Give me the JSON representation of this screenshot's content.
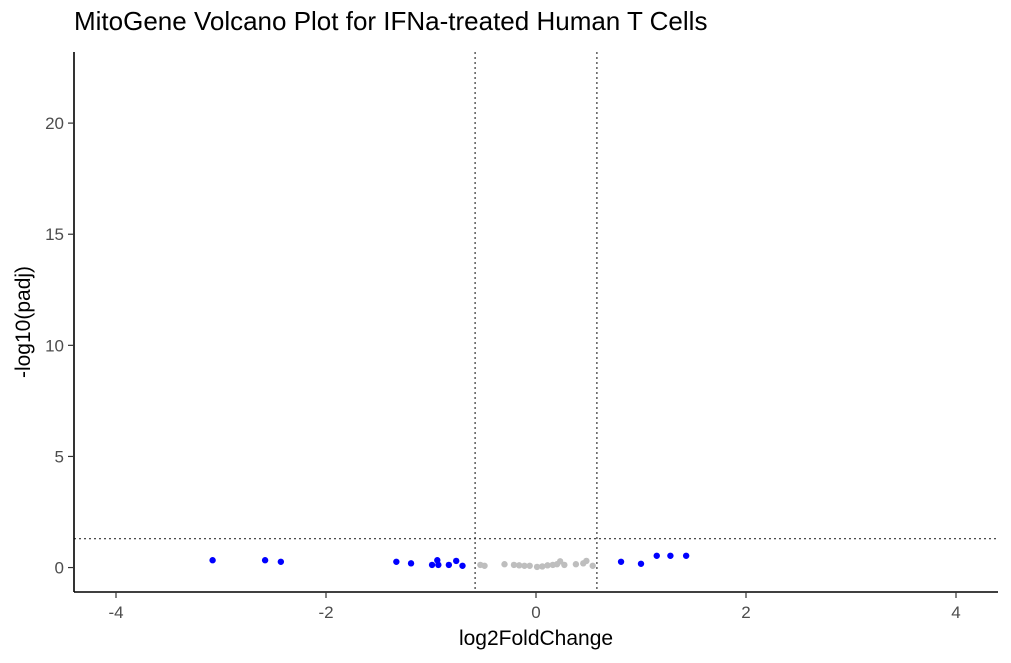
{
  "chart_data": {
    "type": "scatter",
    "title": "MitoGene Volcano Plot for IFNa-treated Human T Cells",
    "xlabel": "log2FoldChange",
    "ylabel": "-log10(padj)",
    "xlim": [
      -4.4,
      4.4
    ],
    "ylim": [
      -1.1,
      23.2
    ],
    "xticks": [
      -4,
      -2,
      0,
      2,
      4
    ],
    "yticks": [
      0,
      5,
      10,
      15,
      20
    ],
    "thresholds": {
      "log2fc": [
        -0.58,
        0.58
      ],
      "neg_log10_padj": 1.3
    },
    "grid": false,
    "colors": {
      "significant": "#0000ff",
      "not_significant": "#bebebe",
      "threshold_line": "#333333"
    },
    "points": [
      {
        "x": -3.08,
        "y": 0.33,
        "sig": true
      },
      {
        "x": -2.58,
        "y": 0.33,
        "sig": true
      },
      {
        "x": -2.43,
        "y": 0.26,
        "sig": true
      },
      {
        "x": -1.33,
        "y": 0.26,
        "sig": true
      },
      {
        "x": -1.19,
        "y": 0.19,
        "sig": true
      },
      {
        "x": -0.99,
        "y": 0.12,
        "sig": true
      },
      {
        "x": -0.94,
        "y": 0.33,
        "sig": true
      },
      {
        "x": -0.93,
        "y": 0.12,
        "sig": true
      },
      {
        "x": -0.83,
        "y": 0.12,
        "sig": true
      },
      {
        "x": -0.76,
        "y": 0.3,
        "sig": true
      },
      {
        "x": -0.7,
        "y": 0.08,
        "sig": true
      },
      {
        "x": -0.53,
        "y": 0.12,
        "sig": false
      },
      {
        "x": -0.49,
        "y": 0.08,
        "sig": false
      },
      {
        "x": -0.3,
        "y": 0.15,
        "sig": false
      },
      {
        "x": -0.21,
        "y": 0.12,
        "sig": false
      },
      {
        "x": -0.16,
        "y": 0.1,
        "sig": false
      },
      {
        "x": -0.11,
        "y": 0.08,
        "sig": false
      },
      {
        "x": -0.06,
        "y": 0.08,
        "sig": false
      },
      {
        "x": 0.01,
        "y": 0.03,
        "sig": false
      },
      {
        "x": 0.06,
        "y": 0.05,
        "sig": false
      },
      {
        "x": 0.11,
        "y": 0.1,
        "sig": false
      },
      {
        "x": 0.16,
        "y": 0.12,
        "sig": false
      },
      {
        "x": 0.2,
        "y": 0.15,
        "sig": false
      },
      {
        "x": 0.23,
        "y": 0.28,
        "sig": false
      },
      {
        "x": 0.27,
        "y": 0.12,
        "sig": false
      },
      {
        "x": 0.38,
        "y": 0.15,
        "sig": false
      },
      {
        "x": 0.45,
        "y": 0.19,
        "sig": false
      },
      {
        "x": 0.48,
        "y": 0.3,
        "sig": false
      },
      {
        "x": 0.54,
        "y": 0.08,
        "sig": false
      },
      {
        "x": 0.81,
        "y": 0.26,
        "sig": true
      },
      {
        "x": 1.0,
        "y": 0.17,
        "sig": true
      },
      {
        "x": 1.15,
        "y": 0.53,
        "sig": true
      },
      {
        "x": 1.28,
        "y": 0.53,
        "sig": true
      },
      {
        "x": 1.43,
        "y": 0.53,
        "sig": true
      }
    ]
  }
}
